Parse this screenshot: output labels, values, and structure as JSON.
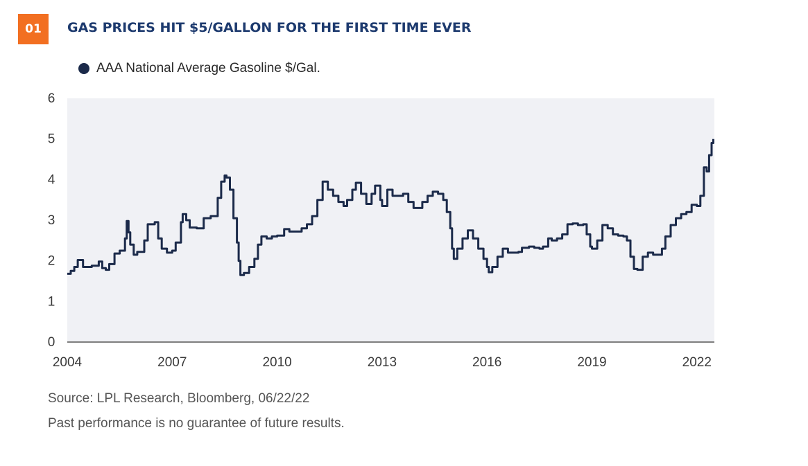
{
  "header": {
    "badge": "01",
    "title": "GAS PRICES HIT $5/GALLON FOR THE FIRST TIME EVER"
  },
  "colors": {
    "badge": "#f26f21",
    "title": "#1d3a6e",
    "series": "#1b2a4a",
    "plot_background": "#f0f1f5"
  },
  "chart_data": {
    "type": "line",
    "title": "GAS PRICES HIT $5/GALLON FOR THE FIRST TIME EVER",
    "xlabel": "",
    "ylabel": "",
    "xlim": [
      2004,
      2022.5
    ],
    "ylim": [
      0,
      6
    ],
    "x_ticks": [
      2004,
      2007,
      2010,
      2013,
      2016,
      2019,
      2022
    ],
    "y_ticks": [
      0,
      1,
      2,
      3,
      4,
      5,
      6
    ],
    "grid": false,
    "legend": "top-left",
    "series": [
      {
        "name": "AAA National Average Gasoline $/Gal.",
        "color": "#1b2a4a",
        "points": [
          [
            2004.0,
            1.68
          ],
          [
            2004.1,
            1.75
          ],
          [
            2004.2,
            1.85
          ],
          [
            2004.3,
            2.02
          ],
          [
            2004.45,
            1.85
          ],
          [
            2004.7,
            1.88
          ],
          [
            2004.9,
            1.98
          ],
          [
            2005.0,
            1.82
          ],
          [
            2005.1,
            1.78
          ],
          [
            2005.2,
            1.92
          ],
          [
            2005.35,
            2.18
          ],
          [
            2005.5,
            2.25
          ],
          [
            2005.65,
            2.55
          ],
          [
            2005.7,
            2.98
          ],
          [
            2005.75,
            2.7
          ],
          [
            2005.8,
            2.4
          ],
          [
            2005.9,
            2.15
          ],
          [
            2006.0,
            2.22
          ],
          [
            2006.2,
            2.5
          ],
          [
            2006.3,
            2.9
          ],
          [
            2006.5,
            2.95
          ],
          [
            2006.6,
            2.55
          ],
          [
            2006.7,
            2.3
          ],
          [
            2006.85,
            2.2
          ],
          [
            2007.0,
            2.25
          ],
          [
            2007.1,
            2.45
          ],
          [
            2007.25,
            2.95
          ],
          [
            2007.3,
            3.15
          ],
          [
            2007.4,
            3.0
          ],
          [
            2007.5,
            2.82
          ],
          [
            2007.7,
            2.8
          ],
          [
            2007.9,
            3.05
          ],
          [
            2008.1,
            3.1
          ],
          [
            2008.3,
            3.55
          ],
          [
            2008.4,
            3.95
          ],
          [
            2008.5,
            4.1
          ],
          [
            2008.55,
            4.05
          ],
          [
            2008.65,
            3.75
          ],
          [
            2008.75,
            3.05
          ],
          [
            2008.85,
            2.45
          ],
          [
            2008.9,
            2.0
          ],
          [
            2008.95,
            1.65
          ],
          [
            2009.05,
            1.7
          ],
          [
            2009.2,
            1.85
          ],
          [
            2009.35,
            2.05
          ],
          [
            2009.45,
            2.4
          ],
          [
            2009.55,
            2.6
          ],
          [
            2009.7,
            2.55
          ],
          [
            2009.85,
            2.6
          ],
          [
            2010.0,
            2.62
          ],
          [
            2010.2,
            2.78
          ],
          [
            2010.35,
            2.72
          ],
          [
            2010.55,
            2.72
          ],
          [
            2010.7,
            2.8
          ],
          [
            2010.85,
            2.9
          ],
          [
            2011.0,
            3.1
          ],
          [
            2011.15,
            3.5
          ],
          [
            2011.3,
            3.95
          ],
          [
            2011.45,
            3.75
          ],
          [
            2011.6,
            3.6
          ],
          [
            2011.75,
            3.45
          ],
          [
            2011.9,
            3.35
          ],
          [
            2012.0,
            3.5
          ],
          [
            2012.15,
            3.75
          ],
          [
            2012.25,
            3.92
          ],
          [
            2012.4,
            3.65
          ],
          [
            2012.55,
            3.4
          ],
          [
            2012.7,
            3.65
          ],
          [
            2012.8,
            3.85
          ],
          [
            2012.95,
            3.5
          ],
          [
            2013.0,
            3.35
          ],
          [
            2013.15,
            3.75
          ],
          [
            2013.3,
            3.6
          ],
          [
            2013.45,
            3.6
          ],
          [
            2013.6,
            3.65
          ],
          [
            2013.75,
            3.45
          ],
          [
            2013.9,
            3.3
          ],
          [
            2014.0,
            3.3
          ],
          [
            2014.15,
            3.45
          ],
          [
            2014.3,
            3.6
          ],
          [
            2014.45,
            3.7
          ],
          [
            2014.6,
            3.65
          ],
          [
            2014.75,
            3.5
          ],
          [
            2014.85,
            3.2
          ],
          [
            2014.95,
            2.8
          ],
          [
            2015.0,
            2.3
          ],
          [
            2015.05,
            2.05
          ],
          [
            2015.15,
            2.3
          ],
          [
            2015.3,
            2.55
          ],
          [
            2015.45,
            2.75
          ],
          [
            2015.6,
            2.55
          ],
          [
            2015.75,
            2.3
          ],
          [
            2015.9,
            2.05
          ],
          [
            2016.0,
            1.85
          ],
          [
            2016.05,
            1.72
          ],
          [
            2016.15,
            1.85
          ],
          [
            2016.3,
            2.1
          ],
          [
            2016.45,
            2.3
          ],
          [
            2016.6,
            2.2
          ],
          [
            2016.75,
            2.2
          ],
          [
            2016.9,
            2.22
          ],
          [
            2017.0,
            2.32
          ],
          [
            2017.2,
            2.35
          ],
          [
            2017.35,
            2.32
          ],
          [
            2017.5,
            2.3
          ],
          [
            2017.6,
            2.35
          ],
          [
            2017.75,
            2.55
          ],
          [
            2017.85,
            2.5
          ],
          [
            2018.0,
            2.55
          ],
          [
            2018.15,
            2.65
          ],
          [
            2018.3,
            2.9
          ],
          [
            2018.45,
            2.92
          ],
          [
            2018.6,
            2.88
          ],
          [
            2018.75,
            2.9
          ],
          [
            2018.85,
            2.65
          ],
          [
            2018.95,
            2.35
          ],
          [
            2019.0,
            2.3
          ],
          [
            2019.15,
            2.5
          ],
          [
            2019.3,
            2.88
          ],
          [
            2019.45,
            2.8
          ],
          [
            2019.6,
            2.65
          ],
          [
            2019.75,
            2.62
          ],
          [
            2019.9,
            2.6
          ],
          [
            2020.0,
            2.5
          ],
          [
            2020.1,
            2.1
          ],
          [
            2020.2,
            1.8
          ],
          [
            2020.3,
            1.78
          ],
          [
            2020.45,
            2.1
          ],
          [
            2020.6,
            2.2
          ],
          [
            2020.75,
            2.15
          ],
          [
            2020.9,
            2.15
          ],
          [
            2021.0,
            2.3
          ],
          [
            2021.1,
            2.6
          ],
          [
            2021.25,
            2.88
          ],
          [
            2021.4,
            3.05
          ],
          [
            2021.55,
            3.15
          ],
          [
            2021.7,
            3.2
          ],
          [
            2021.85,
            3.38
          ],
          [
            2022.0,
            3.35
          ],
          [
            2022.1,
            3.6
          ],
          [
            2022.2,
            4.3
          ],
          [
            2022.28,
            4.2
          ],
          [
            2022.35,
            4.6
          ],
          [
            2022.42,
            4.9
          ],
          [
            2022.47,
            5.0
          ]
        ]
      }
    ]
  },
  "footer": {
    "source": "Source: LPL Research, Bloomberg,  06/22/22",
    "disclaimer": "Past performance is no guarantee of future results."
  }
}
